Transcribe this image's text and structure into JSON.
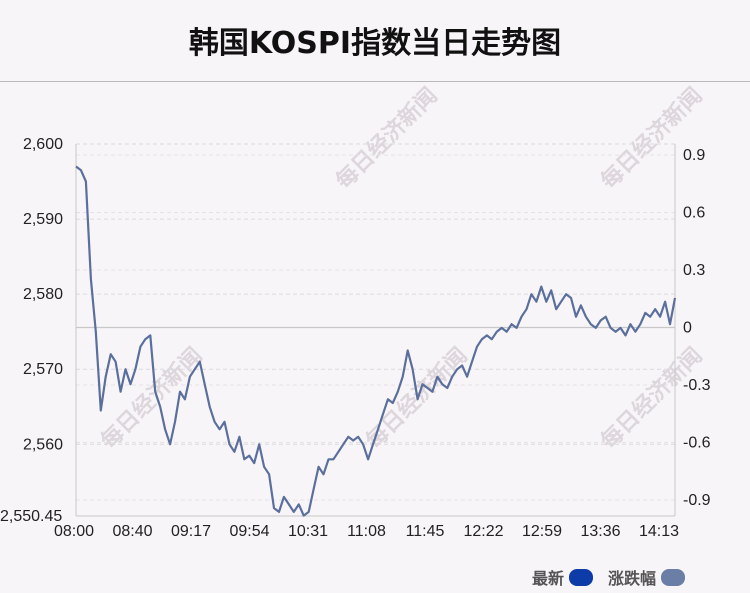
{
  "colors": {
    "latest": "#0d3ca8",
    "change": "#6b7ea6",
    "line": "#5a6f9c"
  },
  "chart_data": {
    "type": "line",
    "title": "韩国KOSPI指数当日走势图",
    "watermark": "每日经济新闻",
    "x_ticks": [
      "08:00",
      "08:40",
      "09:17",
      "09:54",
      "10:31",
      "11:08",
      "11:45",
      "12:22",
      "12:59",
      "13:36",
      "14:13"
    ],
    "y_left_ticks": [
      "2,600",
      "2,590",
      "2,580",
      "2,570",
      "2,560",
      "2,550.45"
    ],
    "y_right_ticks": [
      "0.9",
      "0.6",
      "0.3",
      "0",
      "-0.3",
      "-0.6",
      "-0.9"
    ],
    "y_left_range": [
      2550.45,
      2600
    ],
    "y_right_range": [
      -0.9,
      0.9
    ],
    "grid": true,
    "legend_position": "bottom-right",
    "series": [
      {
        "name": "最新",
        "x_minutes_range": [
          0,
          390
        ],
        "values": [
          2597,
          2596.5,
          2595,
          2582,
          2575,
          2564.5,
          2569,
          2572,
          2571,
          2567,
          2570,
          2568,
          2570,
          2573,
          2574,
          2574.5,
          2567,
          2565,
          2562,
          2560,
          2563,
          2567,
          2566,
          2569,
          2570,
          2571,
          2568,
          2565,
          2563,
          2562,
          2563,
          2560,
          2559,
          2561,
          2558,
          2558.5,
          2557.5,
          2560,
          2557,
          2556,
          2551.5,
          2551,
          2553,
          2552,
          2551,
          2552,
          2550.5,
          2551,
          2554,
          2557,
          2556,
          2558,
          2558,
          2559,
          2560,
          2561,
          2560.5,
          2561,
          2560,
          2558,
          2560,
          2562,
          2564,
          2566,
          2565.5,
          2567,
          2569,
          2572.5,
          2570,
          2566,
          2568,
          2567.5,
          2567,
          2569,
          2568,
          2567.5,
          2569,
          2570,
          2570.5,
          2569,
          2571,
          2573,
          2574,
          2574.5,
          2574,
          2575,
          2575.5,
          2575,
          2576,
          2575.5,
          2577,
          2578,
          2580,
          2579,
          2581,
          2579,
          2580.5,
          2578,
          2579,
          2580,
          2579.5,
          2577,
          2578.5,
          2577,
          2576,
          2575.5,
          2576.5,
          2577,
          2575.5,
          2575,
          2575.5,
          2574.5,
          2576,
          2575,
          2576,
          2577.5,
          2577,
          2578,
          2577,
          2579,
          2576,
          2579.5
        ]
      },
      {
        "name": "涨跌幅"
      }
    ]
  }
}
